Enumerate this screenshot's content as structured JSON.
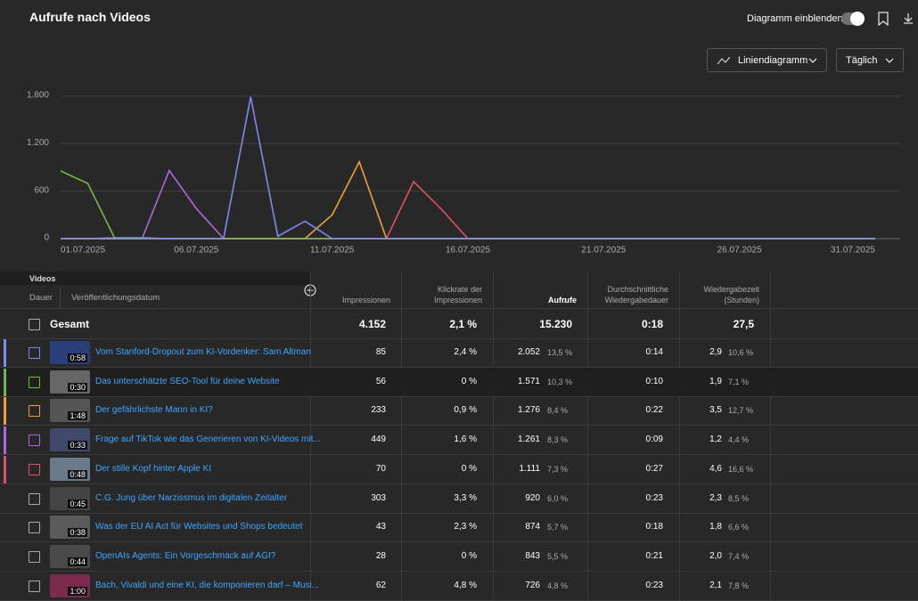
{
  "header": {
    "title": "Aufrufe nach Videos",
    "toggle_label": "Diagramm einblenden",
    "chart_type_select": "Liniendiagramm",
    "period_select": "Täglich"
  },
  "chart_data": {
    "type": "line",
    "categories": [
      "01.07.2025",
      null,
      null,
      null,
      null,
      "06.07.2025",
      null,
      null,
      null,
      null,
      "11.07.2025",
      null,
      null,
      null,
      null,
      "16.07.2025",
      null,
      null,
      null,
      null,
      "21.07.2025",
      null,
      null,
      null,
      null,
      "26.07.2025",
      null,
      null,
      null,
      null,
      "31.07.2025"
    ],
    "series": [
      {
        "color": "#7d8af0",
        "values": [
          0,
          0,
          10,
          10,
          0,
          0,
          0,
          1790,
          30,
          220,
          0,
          0,
          0,
          0,
          0,
          0,
          0,
          0,
          0,
          0,
          0,
          0,
          0,
          0,
          0,
          0,
          0,
          0,
          0,
          0,
          0
        ]
      },
      {
        "color": "#74b843",
        "values": [
          855,
          697,
          0,
          0,
          0,
          0,
          0,
          0,
          0,
          0,
          0,
          0,
          0,
          0,
          0,
          0,
          0,
          0,
          0,
          0,
          0,
          0,
          0,
          0,
          0,
          0,
          0,
          0,
          0,
          0,
          0
        ]
      },
      {
        "color": "#f0a032",
        "values": [
          0,
          0,
          0,
          0,
          0,
          0,
          0,
          0,
          0,
          0,
          300,
          970,
          0,
          0,
          0,
          0,
          0,
          0,
          0,
          0,
          0,
          0,
          0,
          0,
          0,
          0,
          0,
          0,
          0,
          0,
          0
        ]
      },
      {
        "color": "#b065e0",
        "values": [
          0,
          0,
          0,
          0,
          860,
          380,
          0,
          0,
          0,
          0,
          0,
          0,
          0,
          0,
          0,
          0,
          0,
          0,
          0,
          0,
          0,
          0,
          0,
          0,
          0,
          0,
          0,
          0,
          0,
          0,
          0
        ]
      },
      {
        "color": "#e0506a",
        "values": [
          0,
          0,
          0,
          0,
          0,
          0,
          0,
          0,
          0,
          0,
          0,
          0,
          0,
          720,
          380,
          0,
          0,
          0,
          0,
          0,
          0,
          0,
          0,
          0,
          0,
          0,
          0,
          0,
          0,
          0,
          0
        ]
      }
    ],
    "ylim": [
      0,
      1800
    ],
    "yticks": [
      0,
      600,
      {
        "value": 1200,
        "label": "1.200"
      },
      {
        "value": 1800,
        "label": "1.800"
      }
    ],
    "grid": true
  },
  "table": {
    "section": "Videos",
    "col_duration": "Dauer",
    "col_date": "Veröffentlichungsdatum",
    "columns": [
      "Impressionen",
      "Klickrate der Impressionen",
      "Aufrufe",
      "Durchschnittliche Wiedergabedauer",
      "Wiedergabezeit (Stunden)"
    ],
    "total": {
      "label": "Gesamt",
      "impressions": "4.152",
      "ctr": "2,1 %",
      "views": "15.230",
      "avg": "0:18",
      "watch": "27,5"
    },
    "rows": [
      {
        "duration": "0:58",
        "title": "Vom Stanford-Dropout zum KI-Vordenker: Sam Altman",
        "impressions": "85",
        "ctr": "2,4 %",
        "views": "2.052",
        "views_pct": "13,5 %",
        "avg": "0:14",
        "watch": "2,9",
        "watch_pct": "10,6 %",
        "color": "#7d8af0"
      },
      {
        "duration": "0:30",
        "title": "Das unterschätzte SEO-Tool für deine Website",
        "impressions": "56",
        "ctr": "0 %",
        "views": "1.571",
        "views_pct": "10,3 %",
        "avg": "0:10",
        "watch": "1,9",
        "watch_pct": "7,1 %",
        "color": "#74b843"
      },
      {
        "duration": "1:48",
        "title": "Der gefährlichste Mann in KI?",
        "impressions": "233",
        "ctr": "0,9 %",
        "views": "1.276",
        "views_pct": "8,4 %",
        "avg": "0:22",
        "watch": "3,5",
        "watch_pct": "12,7 %",
        "color": "#f0a032"
      },
      {
        "duration": "0:33",
        "title": "Frage auf TikTok wie das Generieren von KI-Videos mit...",
        "impressions": "449",
        "ctr": "1,6 %",
        "views": "1.261",
        "views_pct": "8,3 %",
        "avg": "0:09",
        "watch": "1,2",
        "watch_pct": "4,4 %",
        "color": "#b065e0"
      },
      {
        "duration": "0:48",
        "title": "Der stille Kopf hinter Apple KI",
        "impressions": "70",
        "ctr": "0 %",
        "views": "1.111",
        "views_pct": "7,3 %",
        "avg": "0:27",
        "watch": "4,6",
        "watch_pct": "16,6 %",
        "color": "#e0506a"
      },
      {
        "duration": "0:45",
        "title": "C.G. Jung über Narzissmus im digitalen Zeitalter",
        "impressions": "303",
        "ctr": "3,3 %",
        "views": "920",
        "views_pct": "6,0 %",
        "avg": "0:23",
        "watch": "2,3",
        "watch_pct": "8,5 %"
      },
      {
        "duration": "0:38",
        "title": "Was der EU AI Act für Websites und Shops bedeutet",
        "impressions": "43",
        "ctr": "2,3 %",
        "views": "874",
        "views_pct": "5,7 %",
        "avg": "0:18",
        "watch": "1,8",
        "watch_pct": "6,6 %"
      },
      {
        "duration": "0:44",
        "title": "OpenAIs Agents: Ein Vorgeschmack auf AGI?",
        "impressions": "28",
        "ctr": "0 %",
        "views": "843",
        "views_pct": "5,5 %",
        "avg": "0:21",
        "watch": "2,0",
        "watch_pct": "7,4 %"
      },
      {
        "duration": "1:00",
        "title": "Bach, Vivaldi und eine KI, die komponieren darf – Musi...",
        "impressions": "62",
        "ctr": "4,8 %",
        "views": "726",
        "views_pct": "4,8 %",
        "avg": "0:23",
        "watch": "2,1",
        "watch_pct": "7,8 %"
      }
    ]
  }
}
